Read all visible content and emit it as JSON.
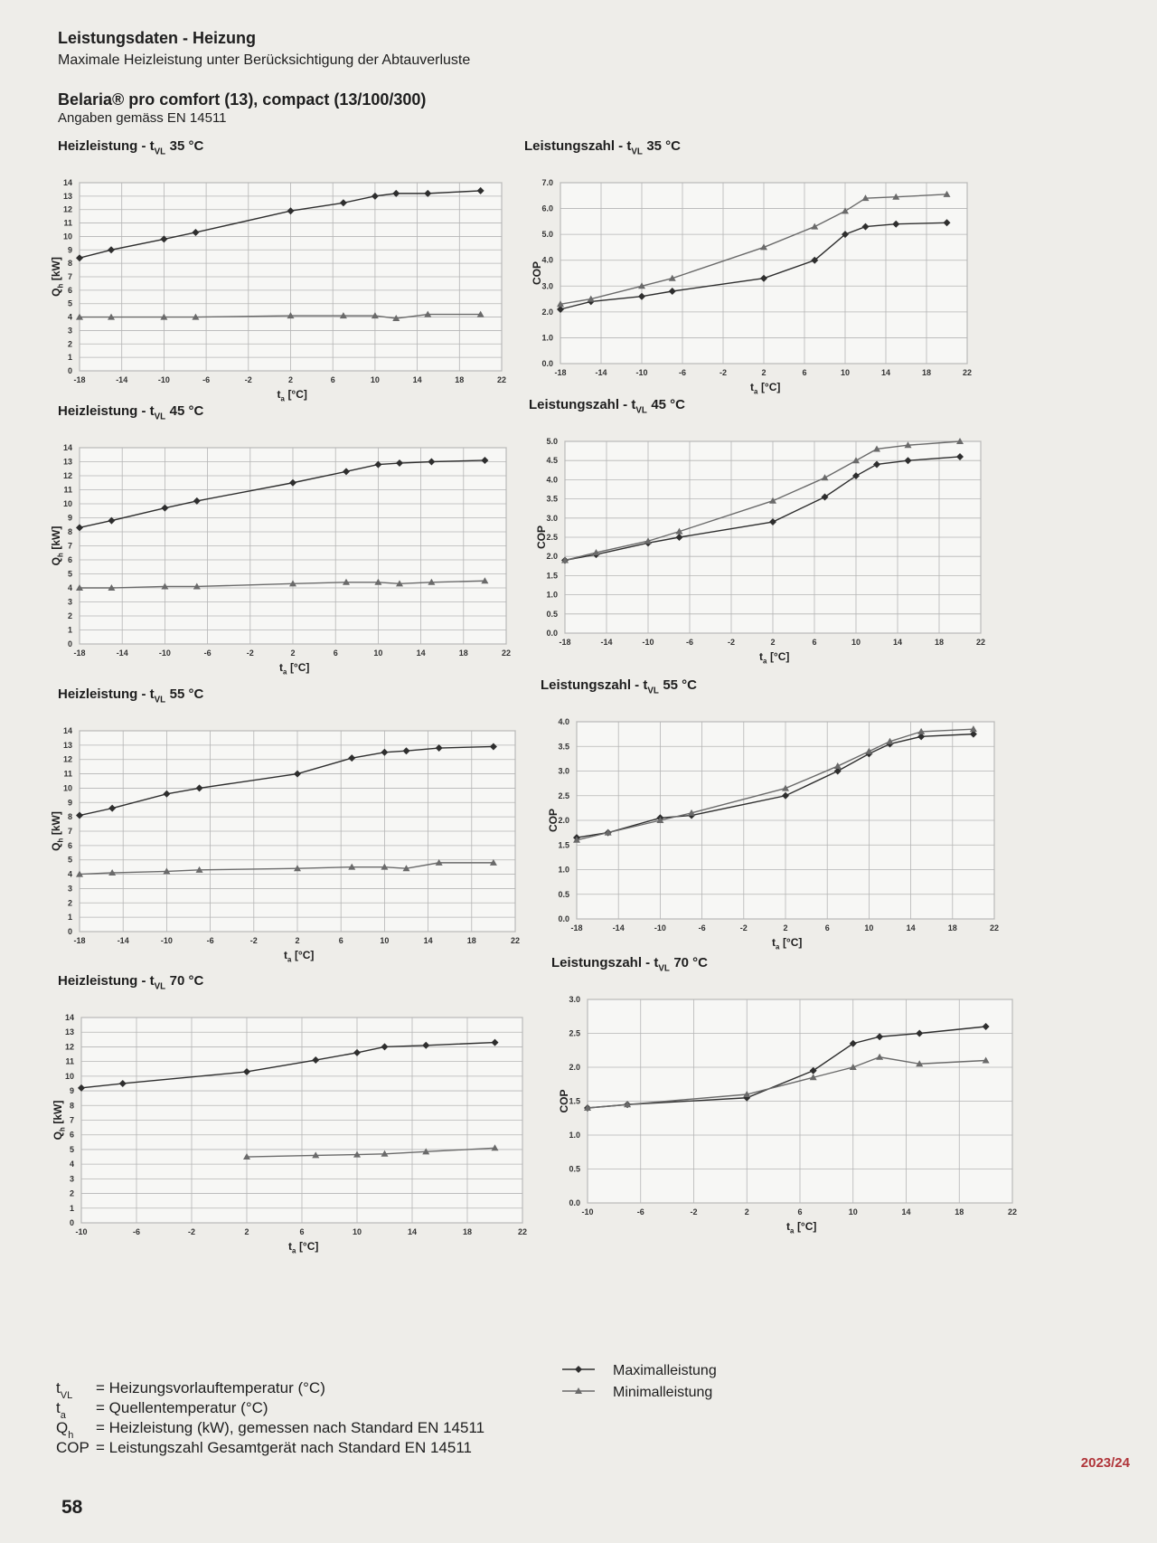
{
  "header": {
    "title": "Leistungsdaten - Heizung",
    "subtitle": "Maximale Heizleistung unter Berücksichtigung der Abtauverluste",
    "product": "Belaria® pro comfort (13), compact (13/100/300)",
    "note": "Angaben gemäss EN 14511"
  },
  "chart_data": [
    {
      "type": "line",
      "title": {
        "main": "Heizleistung - t",
        "sub": "VL",
        "rest": "35 °C"
      },
      "xlabel": {
        "main": "t",
        "sub": "a",
        "rest": "[°C]"
      },
      "ylabel": {
        "main": "Q",
        "sub": "h",
        "rest": "[kW]"
      },
      "x": [
        -18,
        -15,
        -10,
        -7,
        2,
        7,
        10,
        12,
        15,
        20
      ],
      "xlim": [
        -18,
        22
      ],
      "xticks": [
        -18,
        -14,
        -10,
        -6,
        -2,
        2,
        6,
        10,
        14,
        18,
        22
      ],
      "ylim": [
        0,
        14
      ],
      "yticks": [
        0,
        1,
        2,
        3,
        4,
        5,
        6,
        7,
        8,
        9,
        10,
        11,
        12,
        13,
        14
      ],
      "grid": true,
      "series": [
        {
          "marker": "diamond",
          "color": "#2e2e2e",
          "values": [
            8.4,
            9.0,
            9.8,
            10.3,
            11.9,
            12.5,
            13.0,
            13.2,
            13.2,
            13.4
          ]
        },
        {
          "marker": "triangle",
          "color": "#6a6a6a",
          "values": [
            4.0,
            4.0,
            4.0,
            4.0,
            4.1,
            4.1,
            4.1,
            3.9,
            4.2,
            4.2
          ]
        }
      ]
    },
    {
      "type": "line",
      "title": {
        "main": "Leistungszahl - t",
        "sub": "VL",
        "rest": "35 °C"
      },
      "xlabel": {
        "main": "t",
        "sub": "a",
        "rest": "[°C]"
      },
      "ylabel": {
        "main": "COP"
      },
      "x": [
        -18,
        -15,
        -10,
        -7,
        2,
        7,
        10,
        12,
        15,
        20
      ],
      "xlim": [
        -18,
        22
      ],
      "xticks": [
        -18,
        -14,
        -10,
        -6,
        -2,
        2,
        6,
        10,
        14,
        18,
        22
      ],
      "ylim": [
        0,
        7
      ],
      "yticks": [
        {
          "value": 0,
          "label": "0.0"
        },
        {
          "value": 1,
          "label": "1.0"
        },
        {
          "value": 2,
          "label": "2.0"
        },
        {
          "value": 3,
          "label": "3.0"
        },
        {
          "value": 4,
          "label": "4.0"
        },
        {
          "value": 5,
          "label": "5.0"
        },
        {
          "value": 6,
          "label": "6.0"
        },
        {
          "value": 7,
          "label": "7.0"
        }
      ],
      "grid": true,
      "series": [
        {
          "marker": "diamond",
          "color": "#2e2e2e",
          "values": [
            2.1,
            2.4,
            2.6,
            2.8,
            3.3,
            4.0,
            5.0,
            5.3,
            5.4,
            5.45
          ]
        },
        {
          "marker": "triangle",
          "color": "#6a6a6a",
          "values": [
            2.3,
            2.5,
            3.0,
            3.3,
            4.5,
            5.3,
            5.9,
            6.4,
            6.45,
            6.55
          ]
        }
      ]
    },
    {
      "type": "line",
      "title": {
        "main": "Heizleistung - t",
        "sub": "VL",
        "rest": "45 °C"
      },
      "xlabel": {
        "main": "t",
        "sub": "a",
        "rest": "[°C]"
      },
      "ylabel": {
        "main": "Q",
        "sub": "h",
        "rest": "[kW]"
      },
      "x": [
        -18,
        -15,
        -10,
        -7,
        2,
        7,
        10,
        12,
        15,
        20
      ],
      "xlim": [
        -18,
        22
      ],
      "xticks": [
        -18,
        -14,
        -10,
        -6,
        -2,
        2,
        6,
        10,
        14,
        18,
        22
      ],
      "ylim": [
        0,
        14
      ],
      "yticks": [
        0,
        1,
        2,
        3,
        4,
        5,
        6,
        7,
        8,
        9,
        10,
        11,
        12,
        13,
        14
      ],
      "grid": true,
      "series": [
        {
          "marker": "diamond",
          "color": "#2e2e2e",
          "values": [
            8.3,
            8.8,
            9.7,
            10.2,
            11.5,
            12.3,
            12.8,
            12.9,
            13.0,
            13.1
          ]
        },
        {
          "marker": "triangle",
          "color": "#6a6a6a",
          "values": [
            4.0,
            4.0,
            4.1,
            4.1,
            4.3,
            4.4,
            4.4,
            4.3,
            4.4,
            4.5
          ]
        }
      ]
    },
    {
      "type": "line",
      "title": {
        "main": "Leistungszahl - t",
        "sub": "VL",
        "rest": "45 °C"
      },
      "xlabel": {
        "main": "t",
        "sub": "a",
        "rest": "[°C]"
      },
      "ylabel": {
        "main": "COP"
      },
      "x": [
        -18,
        -15,
        -10,
        -7,
        2,
        7,
        10,
        12,
        15,
        20
      ],
      "xlim": [
        -18,
        22
      ],
      "xticks": [
        -18,
        -14,
        -10,
        -6,
        -2,
        2,
        6,
        10,
        14,
        18,
        22
      ],
      "ylim": [
        0,
        5
      ],
      "yticks": [
        {
          "value": 0,
          "label": "0.0"
        },
        0.5,
        {
          "value": 1,
          "label": "1.0"
        },
        1.5,
        {
          "value": 2,
          "label": "2.0"
        },
        2.5,
        {
          "value": 3,
          "label": "3.0"
        },
        3.5,
        {
          "value": 4,
          "label": "4.0"
        },
        4.5,
        {
          "value": 5,
          "label": "5.0"
        }
      ],
      "grid": true,
      "series": [
        {
          "marker": "diamond",
          "color": "#2e2e2e",
          "values": [
            1.9,
            2.05,
            2.35,
            2.5,
            2.9,
            3.55,
            4.1,
            4.4,
            4.5,
            4.6
          ]
        },
        {
          "marker": "triangle",
          "color": "#6a6a6a",
          "values": [
            1.9,
            2.1,
            2.4,
            2.65,
            3.45,
            4.05,
            4.5,
            4.8,
            4.9,
            5.0
          ]
        }
      ]
    },
    {
      "type": "line",
      "title": {
        "main": "Heizleistung - t",
        "sub": "VL",
        "rest": "55 °C"
      },
      "xlabel": {
        "main": "t",
        "sub": "a",
        "rest": "[°C]"
      },
      "ylabel": {
        "main": "Q",
        "sub": "h",
        "rest": "[kW]"
      },
      "x": [
        -18,
        -15,
        -10,
        -7,
        2,
        7,
        10,
        12,
        15,
        20
      ],
      "xlim": [
        -18,
        22
      ],
      "xticks": [
        -18,
        -14,
        -10,
        -6,
        -2,
        2,
        6,
        10,
        14,
        18,
        22
      ],
      "ylim": [
        0,
        14
      ],
      "yticks": [
        0,
        1,
        2,
        3,
        4,
        5,
        6,
        7,
        8,
        9,
        10,
        11,
        12,
        13,
        14
      ],
      "grid": true,
      "series": [
        {
          "marker": "diamond",
          "color": "#2e2e2e",
          "values": [
            8.1,
            8.6,
            9.6,
            10.0,
            11.0,
            12.1,
            12.5,
            12.6,
            12.8,
            12.9
          ]
        },
        {
          "marker": "triangle",
          "color": "#6a6a6a",
          "values": [
            4.0,
            4.1,
            4.2,
            4.3,
            4.4,
            4.5,
            4.5,
            4.4,
            4.8,
            4.8
          ]
        }
      ]
    },
    {
      "type": "line",
      "title": {
        "main": "Leistungszahl - t",
        "sub": "VL",
        "rest": "55 °C"
      },
      "xlabel": {
        "main": "t",
        "sub": "a",
        "rest": "[°C]"
      },
      "ylabel": {
        "main": "COP"
      },
      "x": [
        -18,
        -15,
        -10,
        -7,
        2,
        7,
        10,
        12,
        15,
        20
      ],
      "xlim": [
        -18,
        22
      ],
      "xticks": [
        -18,
        -14,
        -10,
        -6,
        -2,
        2,
        6,
        10,
        14,
        18,
        22
      ],
      "ylim": [
        0,
        4
      ],
      "yticks": [
        {
          "value": 0,
          "label": "0.0"
        },
        0.5,
        {
          "value": 1,
          "label": "1.0"
        },
        1.5,
        {
          "value": 2,
          "label": "2.0"
        },
        2.5,
        {
          "value": 3,
          "label": "3.0"
        },
        3.5,
        {
          "value": 4,
          "label": "4.0"
        }
      ],
      "grid": true,
      "series": [
        {
          "marker": "diamond",
          "color": "#2e2e2e",
          "values": [
            1.65,
            1.75,
            2.05,
            2.1,
            2.5,
            3.0,
            3.35,
            3.55,
            3.7,
            3.75
          ]
        },
        {
          "marker": "triangle",
          "color": "#6a6a6a",
          "values": [
            1.6,
            1.75,
            2.0,
            2.15,
            2.65,
            3.1,
            3.4,
            3.6,
            3.8,
            3.85
          ]
        }
      ]
    },
    {
      "type": "line",
      "title": {
        "main": "Heizleistung - t",
        "sub": "VL",
        "rest": "70 °C"
      },
      "xlabel": {
        "main": "t",
        "sub": "a",
        "rest": "[°C]"
      },
      "ylabel": {
        "main": "Q",
        "sub": "h",
        "rest": "[kW]"
      },
      "x": [
        -10,
        -7,
        2,
        7,
        10,
        12,
        15,
        20
      ],
      "xlim": [
        -10,
        22
      ],
      "xticks": [
        -10,
        -6,
        -2,
        2,
        6,
        10,
        14,
        18,
        22
      ],
      "ylim": [
        0,
        14
      ],
      "yticks": [
        0,
        1,
        2,
        3,
        4,
        5,
        6,
        7,
        8,
        9,
        10,
        11,
        12,
        13,
        14
      ],
      "grid": true,
      "series": [
        {
          "marker": "diamond",
          "color": "#2e2e2e",
          "values": [
            9.2,
            9.5,
            10.3,
            11.1,
            11.6,
            12.0,
            12.1,
            12.3
          ]
        },
        {
          "marker": "triangle",
          "color": "#6a6a6a",
          "values": [
            null,
            null,
            4.5,
            4.6,
            4.65,
            4.7,
            4.85,
            5.1
          ]
        }
      ]
    },
    {
      "type": "line",
      "title": {
        "main": "Leistungszahl - t",
        "sub": "VL",
        "rest": "70 °C"
      },
      "xlabel": {
        "main": "t",
        "sub": "a",
        "rest": "[°C]"
      },
      "ylabel": {
        "main": "COP"
      },
      "x": [
        -10,
        -7,
        2,
        7,
        10,
        12,
        15,
        20
      ],
      "xlim": [
        -10,
        22
      ],
      "xticks": [
        -10,
        -6,
        -2,
        2,
        6,
        10,
        14,
        18,
        22
      ],
      "ylim": [
        0,
        3
      ],
      "yticks": [
        {
          "value": 0,
          "label": "0.0"
        },
        0.5,
        {
          "value": 1,
          "label": "1.0"
        },
        1.5,
        {
          "value": 2,
          "label": "2.0"
        },
        2.5,
        {
          "value": 3,
          "label": "3.0"
        }
      ],
      "grid": true,
      "series": [
        {
          "marker": "diamond",
          "color": "#2e2e2e",
          "values": [
            1.4,
            1.45,
            1.55,
            1.95,
            2.35,
            2.45,
            2.5,
            2.6
          ]
        },
        {
          "marker": "triangle",
          "color": "#6a6a6a",
          "values": [
            1.4,
            1.45,
            1.6,
            1.85,
            2.0,
            2.15,
            2.05,
            2.1
          ]
        }
      ]
    }
  ],
  "legend": [
    {
      "label": "Maximalleistung",
      "marker": "diamond",
      "color": "#2e2e2e"
    },
    {
      "label": "Minimalleistung",
      "marker": "triangle",
      "color": "#6a6a6a"
    }
  ],
  "footnotes": [
    {
      "symbol": "t",
      "sub": "VL",
      "text": "= Heizungsvorlauftemperatur (°C)"
    },
    {
      "symbol": "t",
      "sub": "a",
      "text": "= Quellentemperatur (°C)"
    },
    {
      "symbol": "Q",
      "sub": "h",
      "text": "= Heizleistung (kW), gemessen nach Standard EN 14511"
    },
    {
      "symbol": "COP",
      "text": "= Leistungszahl Gesamtgerät nach Standard EN 14511"
    }
  ],
  "page_number": "58",
  "edition": "2023/24"
}
